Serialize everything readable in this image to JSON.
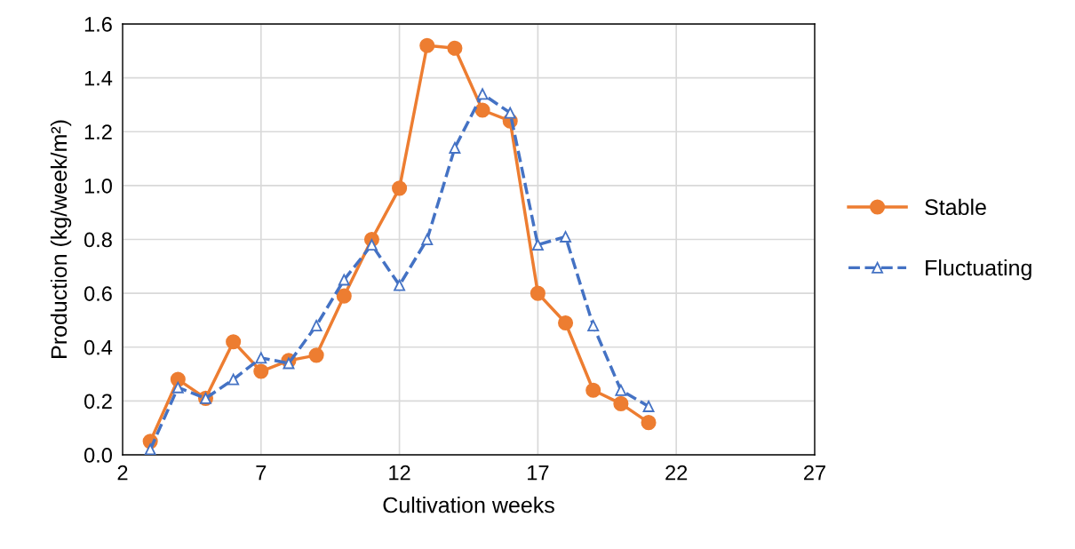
{
  "chart_data": {
    "type": "line",
    "xlabel": "Cultivation weeks",
    "ylabel": "Production (kg/week/m²)",
    "xlim": [
      2,
      27
    ],
    "xticks": [
      2,
      7,
      12,
      17,
      22,
      27
    ],
    "ylim": [
      0,
      1.6
    ],
    "yticks": [
      {
        "value": 0,
        "label": "0.0"
      },
      {
        "value": 0.2,
        "label": "0.2"
      },
      {
        "value": 0.4,
        "label": "0.4"
      },
      {
        "value": 0.6,
        "label": "0.6"
      },
      {
        "value": 0.8,
        "label": "0.8"
      },
      {
        "value": 1.0,
        "label": "1.0"
      },
      {
        "value": 1.2,
        "label": "1.2"
      },
      {
        "value": 1.4,
        "label": "1.4"
      },
      {
        "value": 1.6,
        "label": "1.6"
      }
    ],
    "grid": true,
    "legend": "right",
    "x": [
      3,
      4,
      5,
      6,
      7,
      8,
      9,
      10,
      11,
      12,
      13,
      14,
      15,
      16,
      17,
      18,
      19,
      20,
      21
    ],
    "series": [
      {
        "name": "Stable",
        "color": "#ed7d31",
        "marker": "circle",
        "line_style": "solid",
        "values": [
          0.05,
          0.28,
          0.21,
          0.42,
          0.31,
          0.35,
          0.37,
          0.59,
          0.8,
          0.99,
          1.52,
          1.51,
          1.28,
          1.24,
          0.6,
          0.49,
          0.24,
          0.19,
          0.12
        ]
      },
      {
        "name": "Fluctuating",
        "color": "#4472c4",
        "marker": "triangle",
        "line_style": "dashed",
        "values": [
          0.02,
          0.25,
          0.21,
          0.28,
          0.36,
          0.34,
          0.48,
          0.65,
          0.78,
          0.63,
          0.8,
          1.14,
          1.34,
          1.27,
          0.78,
          0.81,
          0.48,
          0.24,
          0.18
        ]
      }
    ]
  }
}
